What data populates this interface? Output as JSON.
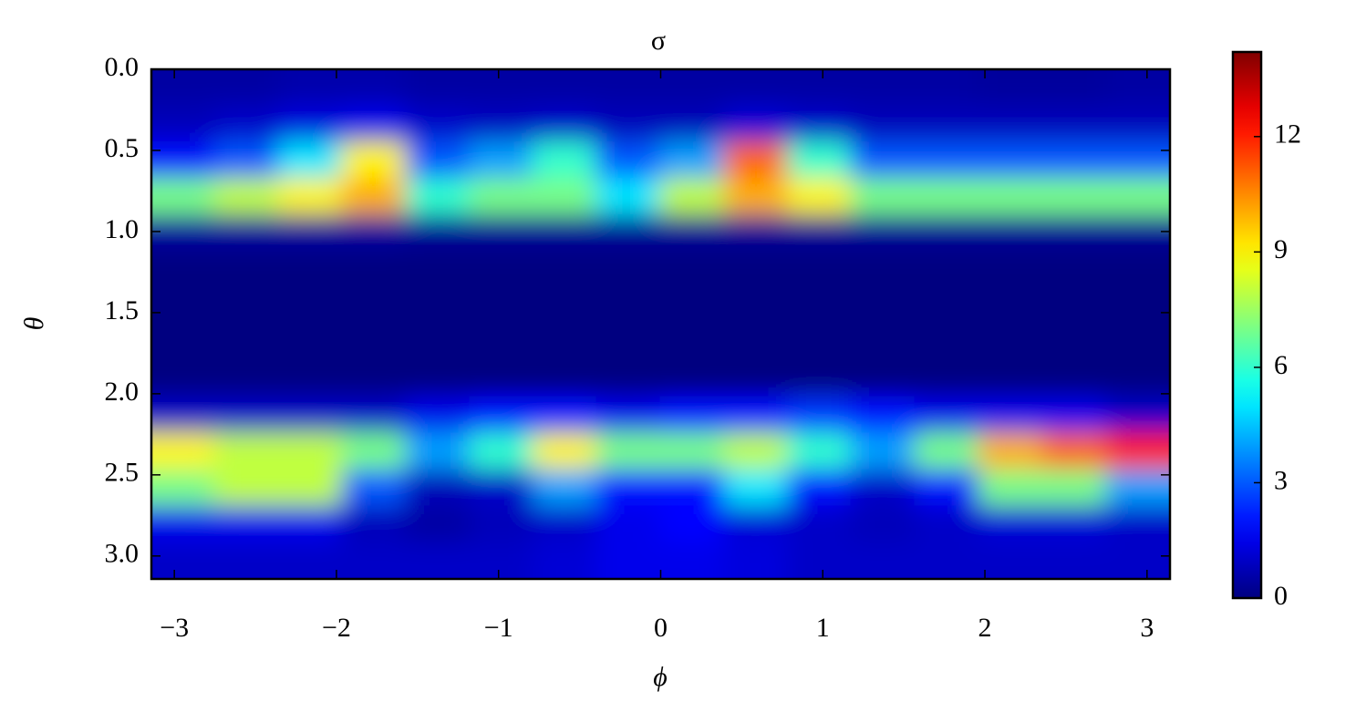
{
  "chart_data": {
    "type": "heatmap",
    "title": "σ",
    "x_label": "ϕ",
    "y_label": "θ",
    "colormap": "jet",
    "xlim": [
      -3.1416,
      3.1416
    ],
    "ylim": [
      0,
      3.1416
    ],
    "y_inverted": true,
    "xticks": [
      {
        "value": -3,
        "label": "−3"
      },
      {
        "value": -2,
        "label": "−2"
      },
      {
        "value": -1,
        "label": "−1"
      },
      0,
      1,
      2,
      3
    ],
    "yticks": [
      {
        "value": 0,
        "label": "0.0"
      },
      0.5,
      {
        "value": 1,
        "label": "1.0"
      },
      1.5,
      {
        "value": 2,
        "label": "2.0"
      },
      2.5,
      {
        "value": 3,
        "label": "3.0"
      }
    ],
    "x": [
      -2.95,
      -2.55,
      -2.16,
      -1.77,
      -1.37,
      -0.98,
      -0.59,
      -0.2,
      0.2,
      0.59,
      0.98,
      1.37,
      1.77,
      2.16,
      2.55,
      2.95
    ],
    "y": [
      0.11,
      0.34,
      0.56,
      0.79,
      1.01,
      1.23,
      1.46,
      1.68,
      1.91,
      2.13,
      2.36,
      2.58,
      2.81,
      3.03
    ],
    "values": [
      [
        0.5,
        0.5,
        0.6,
        0.6,
        0.5,
        0.5,
        0.5,
        0.5,
        0.5,
        0.5,
        0.5,
        0.5,
        0.5,
        0.4,
        0.4,
        0.5
      ],
      [
        0.8,
        1,
        1.3,
        1.5,
        1,
        0.9,
        1,
        0.8,
        0.8,
        1.2,
        1,
        0.8,
        0.8,
        0.8,
        0.8,
        0.8
      ],
      [
        2,
        3,
        5,
        9,
        3,
        4,
        6,
        3,
        4,
        11,
        6,
        3,
        3,
        3,
        3,
        3
      ],
      [
        7,
        8,
        9,
        10,
        6,
        7,
        7,
        5,
        8,
        10,
        9,
        7,
        7,
        7,
        7,
        7
      ],
      [
        0.4,
        0.4,
        0.4,
        0.4,
        0.3,
        0.3,
        0.3,
        0.3,
        0.3,
        0.3,
        0.3,
        0.3,
        0.3,
        0.3,
        0.3,
        0.3
      ],
      [
        0,
        0,
        0,
        0,
        0,
        0,
        0,
        0,
        0,
        0,
        0,
        0,
        0,
        0,
        0,
        0
      ],
      [
        0,
        0,
        0,
        0,
        0,
        0,
        0,
        0,
        0,
        0,
        0,
        0,
        0,
        0,
        0,
        0
      ],
      [
        0,
        0,
        0,
        0,
        0,
        0,
        0,
        0,
        0,
        0,
        0,
        0,
        0,
        0,
        0,
        0
      ],
      [
        0,
        0,
        0,
        0,
        0,
        0,
        0,
        0,
        0,
        0,
        0,
        0,
        0,
        0,
        0,
        0
      ],
      [
        1,
        1,
        1,
        1,
        1.5,
        2,
        2,
        1.5,
        2,
        2,
        2.5,
        2,
        1.5,
        1.5,
        1.5,
        1
      ],
      [
        9,
        8,
        8,
        7,
        4,
        6,
        9,
        7,
        7,
        8,
        6,
        4,
        7,
        10,
        11,
        12
      ],
      [
        7,
        8,
        8,
        3,
        0.8,
        1,
        4,
        2,
        2,
        5,
        2,
        1,
        2,
        7,
        7,
        4
      ],
      [
        1.5,
        1.5,
        1.5,
        0.8,
        0.5,
        0.8,
        1,
        1.5,
        1.8,
        1.2,
        1,
        0.8,
        1,
        1.2,
        1.2,
        1
      ],
      [
        1,
        1,
        1,
        1,
        1,
        1,
        1.2,
        1.5,
        1.5,
        1.3,
        1,
        1,
        1,
        1,
        1,
        1
      ]
    ],
    "colorbar": {
      "lim": [
        0,
        14.2
      ],
      "ticks": [
        0,
        3,
        6,
        9,
        12
      ]
    }
  }
}
